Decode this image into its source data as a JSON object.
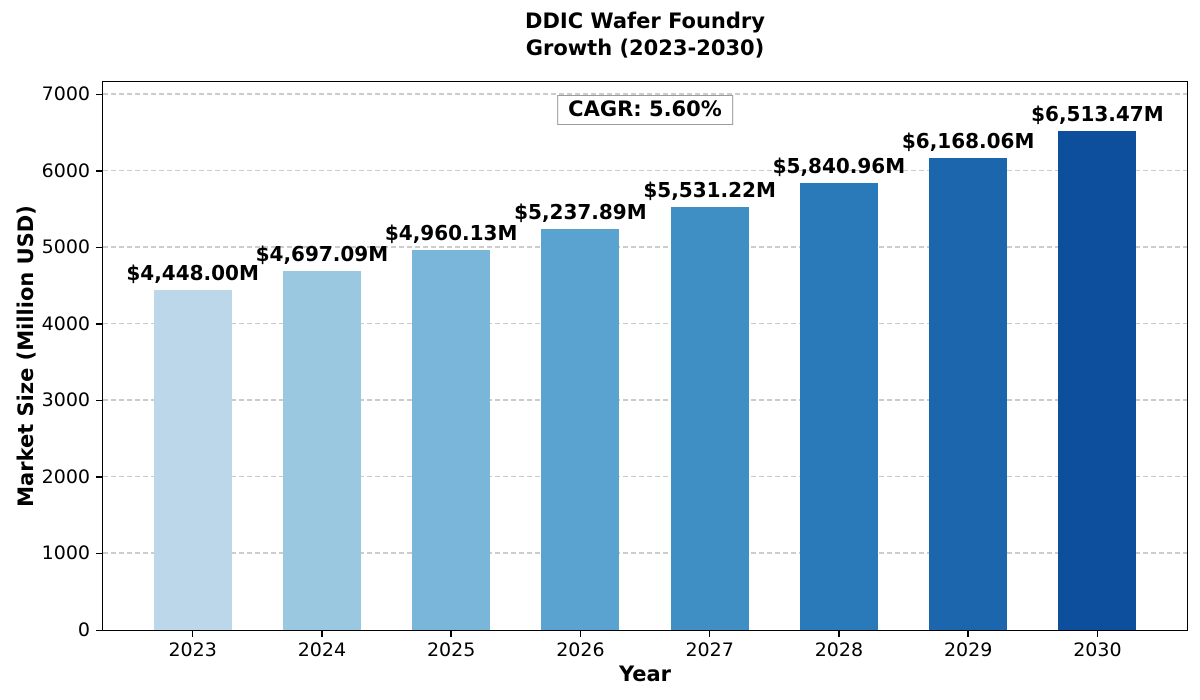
{
  "title": {
    "line1": "DDIC Wafer Foundry",
    "line2": "Growth (2023-2030)"
  },
  "annotation": {
    "text": "CAGR: 5.60%"
  },
  "axes": {
    "xlabel": "Year",
    "ylabel": "Market Size (Million USD)"
  },
  "chart_data": {
    "type": "bar",
    "title": "DDIC Wafer Foundry Growth (2023-2030)",
    "xlabel": "Year",
    "ylabel": "Market Size (Million USD)",
    "categories": [
      "2023",
      "2024",
      "2025",
      "2026",
      "2027",
      "2028",
      "2029",
      "2030"
    ],
    "values": [
      4448.0,
      4697.09,
      4960.13,
      5237.89,
      5531.22,
      5840.96,
      6168.06,
      6513.47
    ],
    "value_labels": [
      "$4,448.00M",
      "$4,697.09M",
      "$4,960.13M",
      "$5,237.89M",
      "$5,531.22M",
      "$5,840.96M",
      "$6,168.06M",
      "$6,513.47M"
    ],
    "bar_colors": [
      "#bcd6ea",
      "#9ac8e0",
      "#7ab6da",
      "#5aa2d0",
      "#3f8fc5",
      "#2a7ab9",
      "#1c66ad",
      "#0d4f9c"
    ],
    "annotation": "CAGR: 5.60%",
    "yticks": [
      0,
      1000,
      2000,
      3000,
      4000,
      5000,
      6000,
      7000
    ],
    "ylim": [
      0,
      7160
    ],
    "grid": "horizontal-dashed",
    "legend": "none"
  },
  "colors": {
    "grid": "#cccccc",
    "spine": "#000000",
    "annotation_border": "#9c9c9c",
    "background": "#ffffff"
  }
}
